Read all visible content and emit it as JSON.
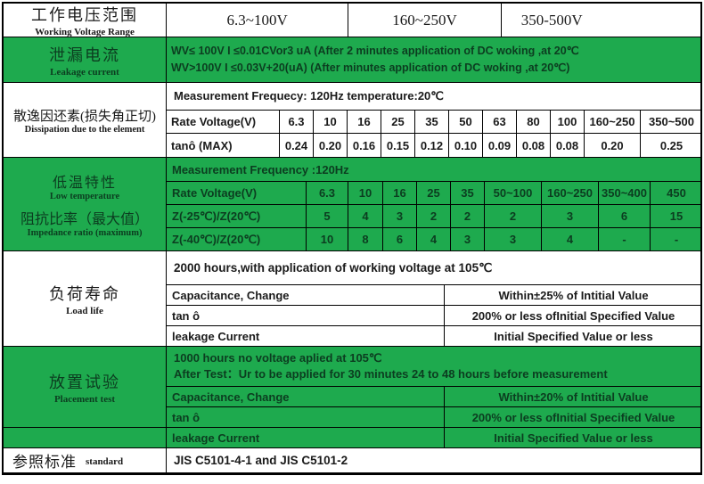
{
  "colors": {
    "green": "#1eaa4e",
    "border": "#000000",
    "green_text": "#0c3d20"
  },
  "header": {
    "label_zh": "工作电压范围",
    "label_en": "Working Voltage Range",
    "ranges": [
      "6.3~100V",
      "160~250V",
      "350-500V"
    ]
  },
  "leakage": {
    "label_zh": "泄漏电流",
    "label_en": "Leakage current",
    "line1": "WV≤ 100V I ≤0.01CVor3 uA  (After 2 minutes application of DC woking ,at 20℃",
    "line2": "WV>100V I ≤0.03V+20(uA)   (After minutes application of DC woking ,at 20℃)"
  },
  "dissipation": {
    "label_zh": "散逸因还素(损失角正切)",
    "label_en": "Dissipation due to the element",
    "freq_note": "Measurement Frequecy: 120Hz temperature:20℃",
    "col_header": "Rate Voltage(V)",
    "row2_header": "tanô (MAX)",
    "voltages": [
      "6.3",
      "10",
      "16",
      "25",
      "35",
      "50",
      "63",
      "80",
      "100",
      "160~250",
      "350~500"
    ],
    "tan_max": [
      "0.24",
      "0.20",
      "0.16",
      "0.15",
      "0.12",
      "0.10",
      "0.09",
      "0.08",
      "0.08",
      "0.20",
      "0.25"
    ]
  },
  "low_temp": {
    "label_top_zh": "低温特性",
    "label_top_en": "Low temperature",
    "label_bottom_zh": "阻抗比率（最大值）",
    "label_bottom_en": "Impedance ratio (maximum)",
    "freq_note": "Measurement Frequency :120Hz",
    "col_header": "Rate Voltage(V)",
    "voltages": [
      "6.3",
      "10",
      "16",
      "25",
      "35",
      "50~100",
      "160~250",
      "350~400",
      "450"
    ],
    "z25_label": "Z(-25℃)/Z(20℃)",
    "z25": [
      "5",
      "4",
      "3",
      "2",
      "2",
      "2",
      "3",
      "6",
      "15"
    ],
    "z40_label": "Z(-40℃)/Z(20℃)",
    "z40": [
      "10",
      "8",
      "6",
      "4",
      "3",
      "3",
      "4",
      "-",
      "-"
    ]
  },
  "load_life": {
    "label_zh": "负荷寿命",
    "label_en": "Load life",
    "condition": "2000 hours,with application of working voltage at 105℃",
    "rows": [
      {
        "item": "Capacitance, Change",
        "spec": "Within±25% of Intitial Value"
      },
      {
        "item": "tan ô",
        "spec": "200% or less ofInitial Specified Value"
      },
      {
        "item": "leakage Current",
        "spec": "Initial Specified Value or less"
      }
    ]
  },
  "placement": {
    "label_zh": "放置试验",
    "label_en": "Placement test",
    "condition_line1": "1000 hours no voltage aplied at 105℃",
    "condition_line2": "After Test：Ur to be applied for 30 minutes 24 to 48 hours before measurement",
    "rows": [
      {
        "item": "Capacitance, Change",
        "spec": "Within±20% of Intitial Value"
      },
      {
        "item": "tan ô",
        "spec": "200% or less ofInitial Specified Value"
      },
      {
        "item": "leakage Current",
        "spec": "Initial Specified Value or less"
      }
    ]
  },
  "standard": {
    "label_zh": "参照标准",
    "label_en": "standard",
    "value": "JIS C5101-4-1 and JIS C5101-2"
  }
}
